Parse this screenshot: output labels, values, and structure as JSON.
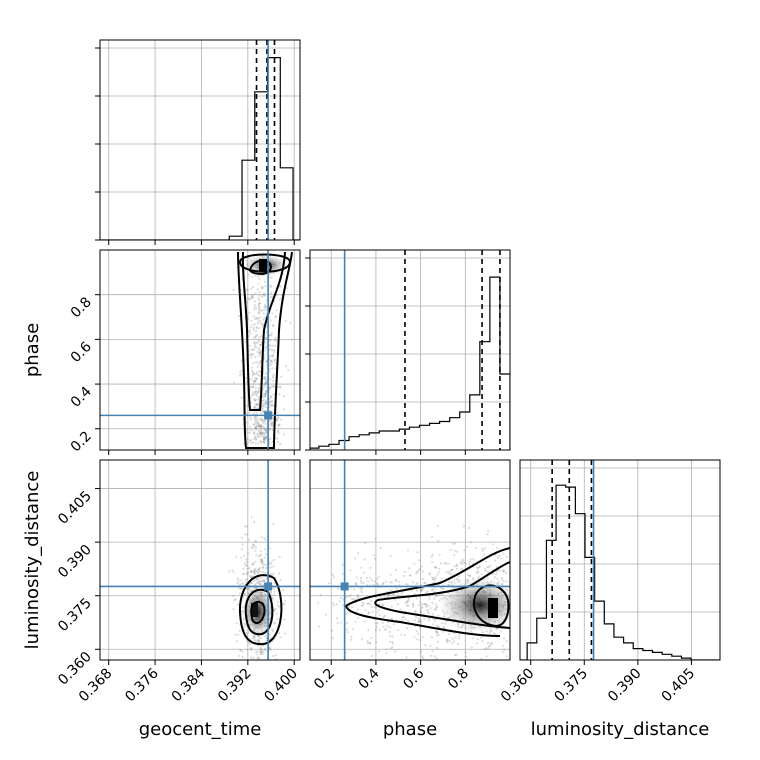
{
  "chart_data": {
    "type": "corner",
    "parameters": [
      {
        "name": "geocent_time",
        "ticks": [
          "0.368",
          "0.376",
          "0.384",
          "0.392",
          "0.400"
        ],
        "tick_values": [
          0.368,
          0.376,
          0.384,
          0.392,
          0.4
        ],
        "range": [
          0.3665,
          0.401
        ],
        "truth": 0.3955
      },
      {
        "name": "phase",
        "ticks": [
          "0.2",
          "0.4",
          "0.6",
          "0.8"
        ],
        "tick_values": [
          0.2,
          0.4,
          0.6,
          0.8
        ],
        "range": [
          0.105,
          1.0
        ],
        "truth": 0.26
      },
      {
        "name": "luminosity_distance",
        "ticks": [
          "0.360",
          "0.375",
          "0.390",
          "0.405"
        ],
        "tick_values": [
          0.36,
          0.375,
          0.39,
          0.405
        ],
        "range": [
          0.357,
          0.413
        ],
        "truth": 0.3776
      }
    ],
    "diagonal": [
      {
        "param": "geocent_time",
        "bin_edges": [
          0.3888,
          0.391,
          0.3932,
          0.3954,
          0.3976,
          0.3998
        ],
        "counts": [
          0.02,
          0.42,
          0.78,
          0.96,
          0.38
        ],
        "quantiles": [
          0.3935,
          0.3953,
          0.3966
        ],
        "truth": 0.3955
      },
      {
        "param": "phase",
        "bin_edges": [
          0.105,
          0.145,
          0.19,
          0.235,
          0.28,
          0.325,
          0.37,
          0.415,
          0.46,
          0.505,
          0.55,
          0.595,
          0.64,
          0.685,
          0.73,
          0.775,
          0.82,
          0.865,
          0.91,
          0.955,
          1.0
        ],
        "counts": [
          0.01,
          0.02,
          0.03,
          0.05,
          0.07,
          0.08,
          0.09,
          0.1,
          0.1,
          0.11,
          0.12,
          0.13,
          0.14,
          0.15,
          0.17,
          0.2,
          0.29,
          0.57,
          0.91,
          0.4
        ],
        "quantiles": [
          0.53,
          0.875,
          0.955
        ],
        "truth": 0.26
      },
      {
        "param": "luminosity_distance",
        "bin_edges": [
          0.359,
          0.3617,
          0.3644,
          0.3671,
          0.3698,
          0.3725,
          0.3752,
          0.3779,
          0.3806,
          0.3833,
          0.386,
          0.3887,
          0.3914,
          0.3941,
          0.3968,
          0.3995,
          0.4022,
          0.4049
        ],
        "counts": [
          0.09,
          0.22,
          0.63,
          0.92,
          0.91,
          0.77,
          0.54,
          0.31,
          0.19,
          0.12,
          0.09,
          0.06,
          0.05,
          0.04,
          0.03,
          0.02,
          0.01
        ],
        "quantiles": [
          0.366,
          0.3708,
          0.377
        ],
        "truth": 0.3776
      }
    ],
    "pairs": [
      {
        "x": "geocent_time",
        "y": "phase",
        "truth": [
          0.3955,
          0.26
        ],
        "peak": [
          0.395,
          0.93
        ]
      },
      {
        "x": "geocent_time",
        "y": "luminosity_distance",
        "truth": [
          0.3955,
          0.3776
        ],
        "peak": [
          0.3943,
          0.37
        ]
      },
      {
        "x": "phase",
        "y": "luminosity_distance",
        "truth": [
          0.26,
          0.3776
        ],
        "peak": [
          0.94,
          0.37
        ]
      }
    ],
    "colors": {
      "truth": "#4682b4",
      "samples": "#808080",
      "contour": "#000000"
    }
  }
}
